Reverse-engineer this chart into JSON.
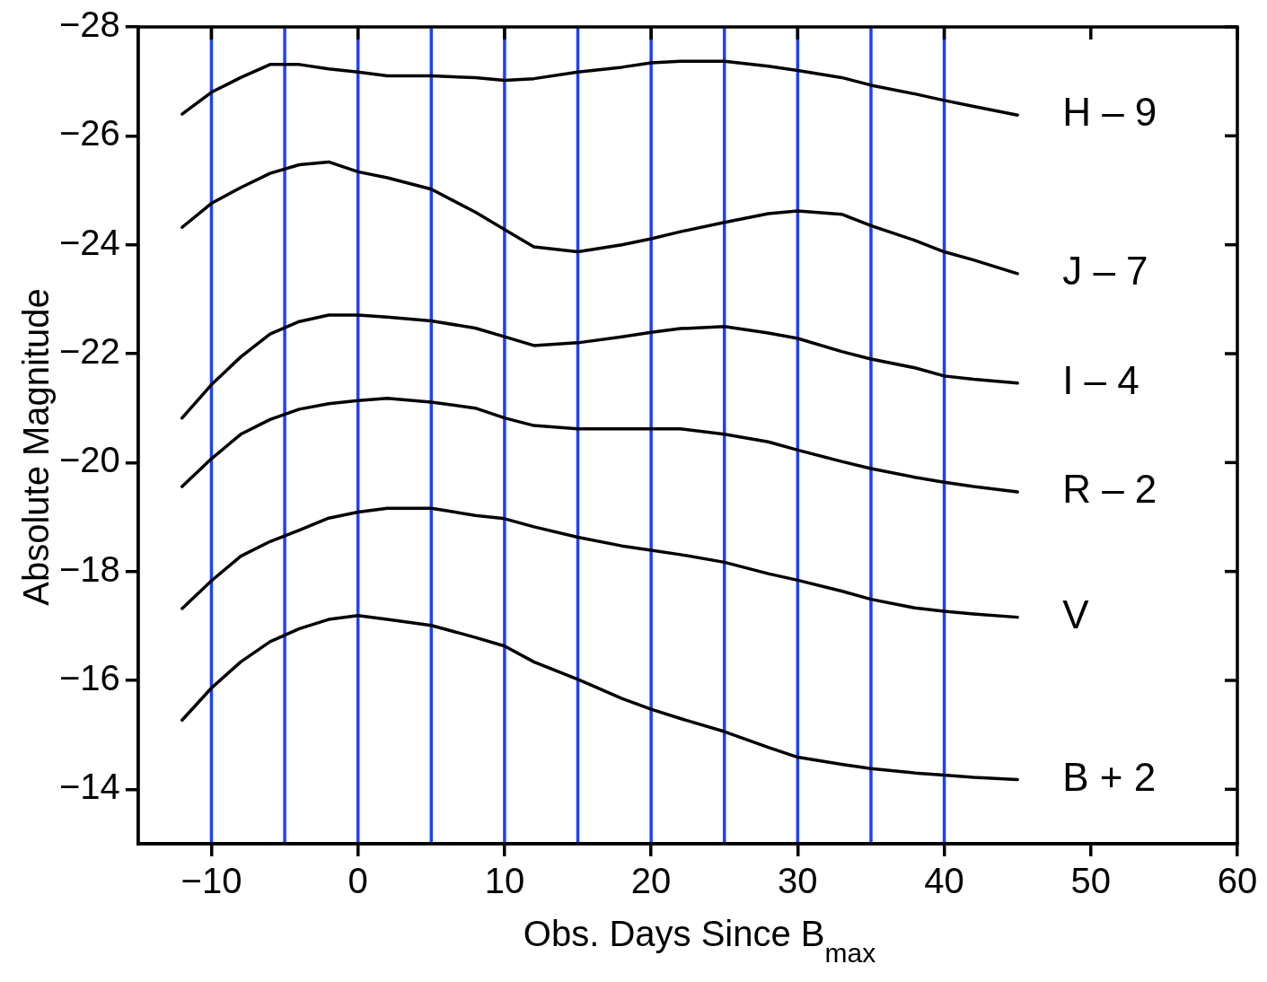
{
  "chart_data": {
    "type": "line",
    "xlabel": "Obs. Days Since B$_{max}$",
    "ylabel": "Absolute Magnitude",
    "x": [
      -12,
      -10,
      -8,
      -6,
      -4,
      -2,
      0,
      2,
      5,
      8,
      10,
      12,
      15,
      18,
      20,
      22,
      25,
      28,
      30,
      33,
      35,
      38,
      40,
      42,
      45
    ],
    "series": [
      {
        "name": "H – 9",
        "color": "#000000",
        "values": [
          -26.4,
          -26.8,
          -27.07,
          -27.31,
          -27.31,
          -27.23,
          -27.17,
          -27.1,
          -27.1,
          -27.07,
          -27.02,
          -27.05,
          -27.17,
          -27.26,
          -27.34,
          -27.37,
          -27.37,
          -27.28,
          -27.2,
          -27.07,
          -26.93,
          -26.77,
          -26.65,
          -26.54,
          -26.38
        ]
      },
      {
        "name": "J – 7",
        "color": "#000000",
        "values": [
          -24.32,
          -24.76,
          -25.05,
          -25.31,
          -25.47,
          -25.52,
          -25.34,
          -25.23,
          -25.02,
          -24.6,
          -24.28,
          -23.96,
          -23.87,
          -24.0,
          -24.11,
          -24.24,
          -24.41,
          -24.57,
          -24.62,
          -24.56,
          -24.35,
          -24.08,
          -23.87,
          -23.72,
          -23.47
        ]
      },
      {
        "name": "I – 4",
        "color": "#000000",
        "values": [
          -20.82,
          -21.43,
          -21.94,
          -22.36,
          -22.59,
          -22.71,
          -22.71,
          -22.67,
          -22.6,
          -22.47,
          -22.31,
          -22.15,
          -22.2,
          -22.31,
          -22.39,
          -22.46,
          -22.5,
          -22.38,
          -22.28,
          -22.04,
          -21.9,
          -21.74,
          -21.59,
          -21.53,
          -21.46
        ]
      },
      {
        "name": "R – 2",
        "color": "#000000",
        "values": [
          -19.56,
          -20.07,
          -20.52,
          -20.79,
          -20.98,
          -21.08,
          -21.14,
          -21.18,
          -21.11,
          -21.0,
          -20.82,
          -20.68,
          -20.62,
          -20.62,
          -20.62,
          -20.62,
          -20.52,
          -20.38,
          -20.23,
          -20.02,
          -19.89,
          -19.73,
          -19.64,
          -19.56,
          -19.46
        ]
      },
      {
        "name": "V",
        "color": "#000000",
        "values": [
          -17.32,
          -17.83,
          -18.28,
          -18.55,
          -18.76,
          -18.98,
          -19.09,
          -19.16,
          -19.16,
          -19.03,
          -18.97,
          -18.82,
          -18.63,
          -18.47,
          -18.39,
          -18.31,
          -18.17,
          -17.96,
          -17.84,
          -17.64,
          -17.49,
          -17.33,
          -17.27,
          -17.22,
          -17.16
        ]
      },
      {
        "name": "B + 2",
        "color": "#000000",
        "values": [
          -15.27,
          -15.86,
          -16.34,
          -16.71,
          -16.95,
          -17.12,
          -17.19,
          -17.12,
          -17.01,
          -16.79,
          -16.63,
          -16.34,
          -16.02,
          -15.67,
          -15.47,
          -15.3,
          -15.06,
          -14.77,
          -14.59,
          -14.46,
          -14.38,
          -14.3,
          -14.26,
          -14.22,
          -14.18
        ]
      }
    ],
    "xlim": [
      -15,
      60
    ],
    "xticks": [
      -10,
      0,
      10,
      20,
      30,
      40,
      50,
      60
    ],
    "ylim": [
      -13,
      -28
    ],
    "yticks": [
      -28,
      -26,
      -24,
      -22,
      -20,
      -18,
      -16,
      -14
    ],
    "ref_lines": [
      {
        "axis": "x",
        "value": -10,
        "color": "#1f3fff"
      },
      {
        "axis": "x",
        "value": -5,
        "color": "#1f3fff"
      },
      {
        "axis": "x",
        "value": 0,
        "color": "#1f3fff"
      },
      {
        "axis": "x",
        "value": 5,
        "color": "#1f3fff"
      },
      {
        "axis": "x",
        "value": 10,
        "color": "#1f3fff"
      },
      {
        "axis": "x",
        "value": 15,
        "color": "#1f3fff"
      },
      {
        "axis": "x",
        "value": 20,
        "color": "#1f3fff"
      },
      {
        "axis": "x",
        "value": 25,
        "color": "#1f3fff"
      },
      {
        "axis": "x",
        "value": 30,
        "color": "#1f3fff"
      },
      {
        "axis": "x",
        "value": 35,
        "color": "#1f3fff"
      },
      {
        "axis": "x",
        "value": 40,
        "color": "#1f3fff"
      }
    ],
    "marker": "none",
    "line_style": "solid",
    "grid": false,
    "legend": "right"
  }
}
